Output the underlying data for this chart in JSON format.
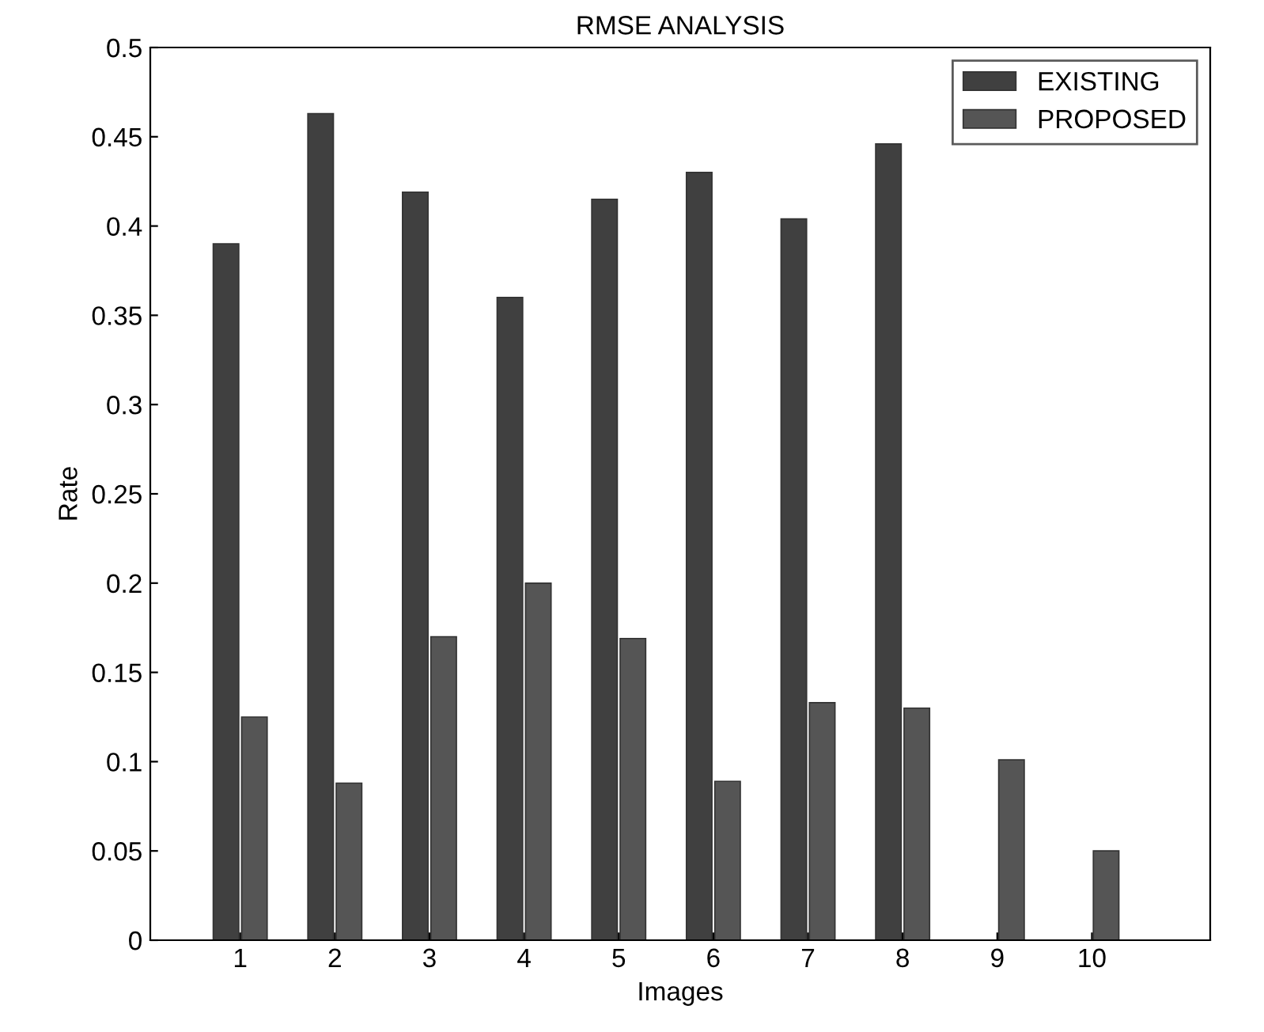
{
  "chart_data": {
    "type": "bar",
    "title": "RMSE ANALYSIS",
    "xlabel": "Images",
    "ylabel": "Rate",
    "categories": [
      "1",
      "2",
      "3",
      "4",
      "5",
      "6",
      "7",
      "8",
      "9",
      "10"
    ],
    "series": [
      {
        "name": "EXISTING",
        "color": "#404040",
        "values": [
          0.39,
          0.463,
          0.419,
          0.36,
          0.415,
          0.43,
          0.404,
          0.446,
          null,
          null
        ]
      },
      {
        "name": "PROPOSED",
        "color": "#555555",
        "values": [
          0.125,
          0.088,
          0.17,
          0.2,
          0.169,
          0.089,
          0.133,
          0.13,
          0.101,
          0.05
        ]
      }
    ],
    "ylim": [
      0,
      0.5
    ],
    "yticks": [
      0,
      0.05,
      0.1,
      0.15,
      0.2,
      0.25,
      0.3,
      0.35,
      0.4,
      0.45,
      0.5
    ],
    "grid": false,
    "legend": "top right"
  }
}
